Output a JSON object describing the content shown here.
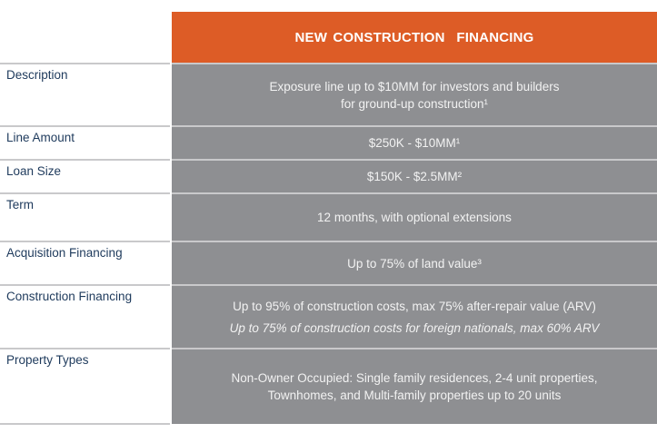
{
  "header": {
    "title": "NEW CONSTRUCTION  FINANCING",
    "color": "#dd5c26"
  },
  "rows": [
    {
      "label": "Description",
      "lines": [
        "Exposure line up to $10MM for investors and builders",
        "for ground-up construction¹"
      ]
    },
    {
      "label": "Line Amount",
      "lines": [
        "$250K - $10MM¹"
      ]
    },
    {
      "label": "Loan Size",
      "lines": [
        "$150K - $2.5MM²"
      ]
    },
    {
      "label": "Term",
      "lines": [
        "12 months, with optional extensions"
      ]
    },
    {
      "label": "Acquisition Financing",
      "lines": [
        "Up to 75% of land value³"
      ]
    },
    {
      "label": "Construction Financing",
      "lines": [
        "Up to 95% of construction costs, max 75% after-repair value (ARV)"
      ],
      "italic": "Up to 75% of construction costs for foreign nationals, max 60% ARV"
    },
    {
      "label": "Property Types",
      "lines": [
        "Non-Owner Occupied: Single family residences, 2-4 unit properties,",
        "Townhomes, and Multi-family properties up to 20 units"
      ]
    }
  ]
}
